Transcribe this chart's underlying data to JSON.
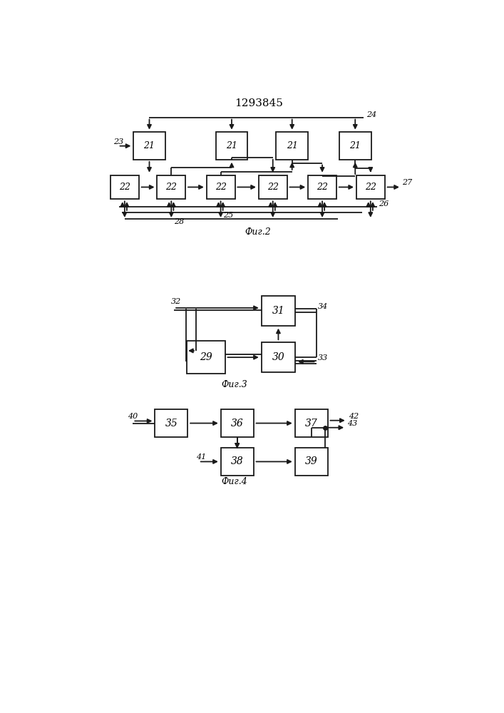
{
  "title": "1293845",
  "fig2_label": "Фиг.2",
  "fig3_label": "Фиг.3",
  "fig4_label": "Фиг.4",
  "bg_color": "#ffffff",
  "box_color": "#ffffff",
  "line_color": "#1a1a1a"
}
